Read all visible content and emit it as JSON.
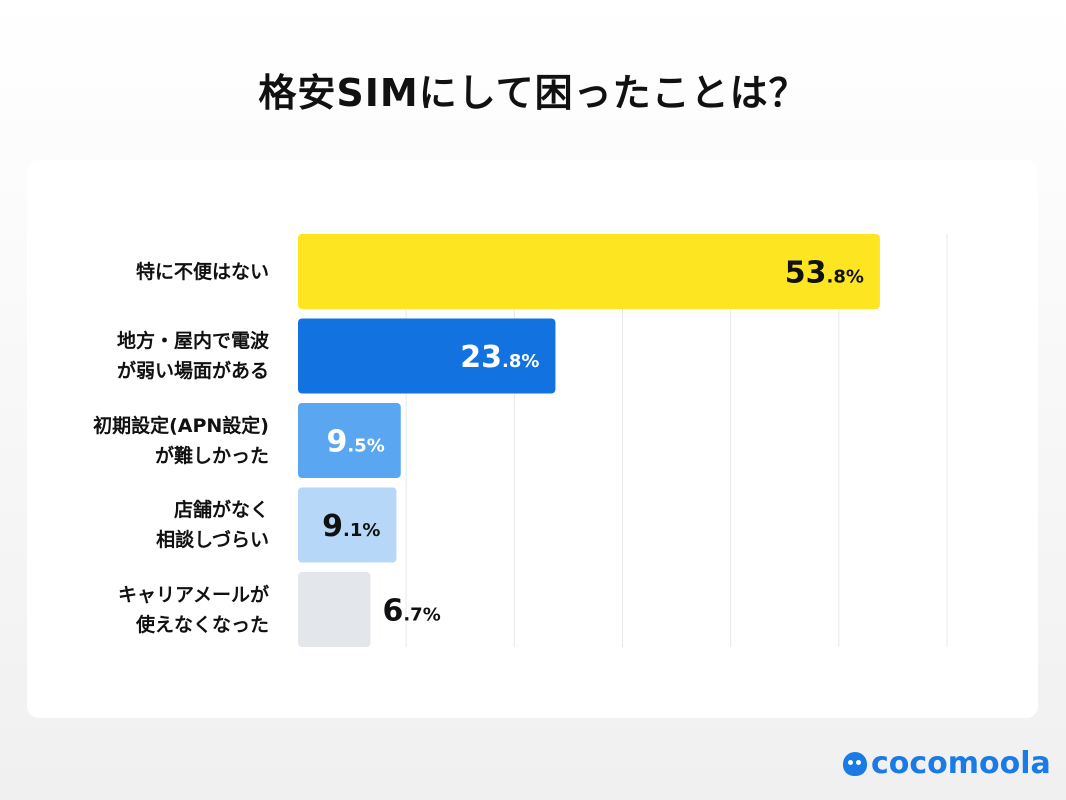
{
  "chart_data": {
    "type": "bar",
    "orientation": "horizontal",
    "title": "格安SIMにして困ったことは？",
    "categories": [
      "特に不便はない",
      "地方・屋内で電波\nが弱い場面がある",
      "初期設定(APN設定)\nが難しかった",
      "店舗がなく\n相談しづらい",
      "キャリアメールが\n使えなくなった"
    ],
    "values": [
      53.8,
      23.8,
      9.5,
      9.1,
      6.7
    ],
    "value_labels": [
      [
        "53",
        ".8%"
      ],
      [
        "23",
        ".8%"
      ],
      [
        "9",
        ".5%"
      ],
      [
        "9",
        ".1%"
      ],
      [
        "6",
        ".7%"
      ]
    ],
    "colors": [
      "#fde521",
      "#1273e0",
      "#5aa6f0",
      "#b7d7f8",
      "#e3e7ec"
    ],
    "label_colors": [
      "#111111",
      "#ffffff",
      "#ffffff",
      "#111111",
      "#111111"
    ],
    "xlim": [
      0,
      60
    ],
    "grid": true,
    "grid_step": 10,
    "legend": "none"
  },
  "brand": {
    "name": "cocomoola",
    "color": "#1a7be6"
  }
}
